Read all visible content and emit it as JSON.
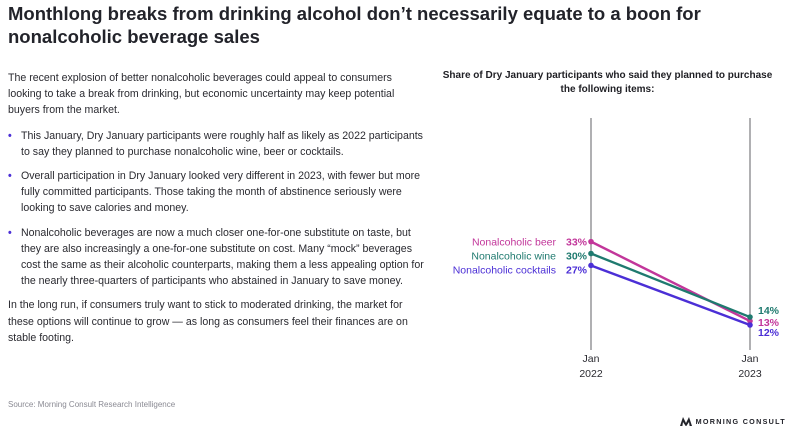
{
  "title": "Monthlong breaks from drinking alcohol don’t necessarily equate to a boon for nonalcoholic beverage sales",
  "intro": "The recent explosion of better nonalcoholic beverages could appeal to consumers looking to take a break from drinking, but economic uncertainty may keep potential buyers from the market.",
  "bullets": [
    "This January, Dry January participants were roughly half as likely as 2022 participants to say they planned to purchase nonalcoholic wine, beer or cocktails.",
    "Overall participation in Dry January looked very different in 2023, with fewer but more fully committed participants. Those taking the month of abstinence seriously were looking to save calories and money.",
    "Nonalcoholic beverages are now a much closer one-for-one substitute on taste, but they are also increasingly a one-for-one substitute on cost. Many “mock” beverages cost the same as their alcoholic counterparts, making them a less appealing option for the nearly three-quarters of participants who abstained in January to save money."
  ],
  "bullet_marker": "•",
  "closing": "In the long run, if consumers truly want to stick to moderated drinking, the market for these options will continue to grow — as long as consumers feel their finances are on stable footing.",
  "source": "Source: Morning Consult Research Intelligence",
  "logo_text": "MORNING CONSULT",
  "chart_data": {
    "type": "line",
    "title": "Share of Dry January participants who said they planned to purchase the following items:",
    "x": [
      "Jan 2022",
      "Jan 2023"
    ],
    "x_ticks": [
      {
        "line1": "Jan",
        "line2": "2022"
      },
      {
        "line1": "Jan",
        "line2": "2023"
      }
    ],
    "ylim": [
      0,
      40
    ],
    "grid": false,
    "legend": "labels at line start",
    "series": [
      {
        "name": "Nonalcoholic beer",
        "values": [
          33,
          13
        ],
        "labels": [
          "33%",
          "13%"
        ],
        "color": "#c2369a"
      },
      {
        "name": "Nonalcoholic wine",
        "values": [
          30,
          14
        ],
        "labels": [
          "30%",
          "14%"
        ],
        "color": "#1f7a6f"
      },
      {
        "name": "Nonalcoholic cocktails",
        "values": [
          27,
          12
        ],
        "labels": [
          "27%",
          "12%"
        ],
        "color": "#4b2fd6"
      }
    ]
  }
}
